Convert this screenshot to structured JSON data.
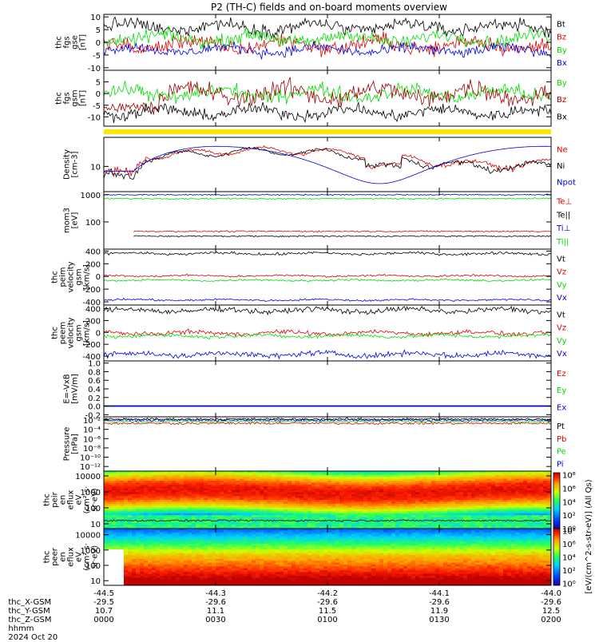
{
  "title": "P2 (TH-C) fields and on-board moments overview",
  "colors": {
    "black": "#000000",
    "red": "#e00000",
    "green": "#00dd00",
    "blue": "#0000e0",
    "dark_red": "#a00000",
    "yellow": "#ffe600"
  },
  "chart_data": [
    {
      "id": "fgs_gse",
      "type": "line",
      "ylabel": [
        "thc",
        "fgs",
        "gse",
        "[nT]"
      ],
      "yticks": [
        "10",
        "5",
        "0",
        "-5",
        "-10"
      ],
      "ytick_values": [
        10,
        5,
        0,
        -5,
        -10
      ],
      "ylim": [
        -11,
        11
      ],
      "series": [
        {
          "name": "Bt",
          "color": "#000000",
          "base": 6,
          "amp": 2.5
        },
        {
          "name": "Bz",
          "color": "#e00000",
          "base": -1,
          "amp": 3
        },
        {
          "name": "By",
          "color": "#00dd00",
          "base": 1.5,
          "amp": 2.5
        },
        {
          "name": "Bx",
          "color": "#0000e0",
          "base": -3,
          "amp": 2
        }
      ]
    },
    {
      "id": "fgs_gsm",
      "type": "line",
      "ylabel": [
        "thc",
        "fgs",
        "gsm",
        "[nT]"
      ],
      "yticks": [
        "5",
        "0",
        "-5",
        "-10"
      ],
      "ytick_values": [
        5,
        0,
        -5,
        -10
      ],
      "ylim": [
        -14,
        10
      ],
      "series": [
        {
          "name": "By",
          "color": "#00dd00",
          "base": 0,
          "amp": 3
        },
        {
          "name": "Bz",
          "color": "#a00000",
          "base": 0,
          "amp": 4
        },
        {
          "name": "Bx",
          "color": "#000000",
          "base": -8,
          "amp": 2.5
        }
      ]
    },
    {
      "id": "density",
      "type": "line",
      "scale": "log",
      "ylabel": [
        "Density",
        "[cm-3]"
      ],
      "yticks": [
        "10"
      ],
      "ytick_values": [
        10
      ],
      "ylim": [
        3,
        40
      ],
      "series": [
        {
          "name": "Ne",
          "color": "#e00000"
        },
        {
          "name": "Ni",
          "color": "#000000"
        },
        {
          "name": "Npot",
          "color": "#0000e0"
        }
      ]
    },
    {
      "id": "temperature",
      "type": "line",
      "scale": "log",
      "ylabel": [
        "mom3",
        "[eV]"
      ],
      "yticks": [
        "1000",
        "100"
      ],
      "ytick_values": [
        1000,
        100
      ],
      "ylim": [
        10,
        1300
      ],
      "series": [
        {
          "name": "Te⊥",
          "color": "#e00000",
          "level": 45
        },
        {
          "name": "Te||",
          "color": "#000000",
          "level": 30
        },
        {
          "name": "Ti⊥",
          "color": "#0000e0",
          "level": 1000
        },
        {
          "name": "Ti||",
          "color": "#00dd00",
          "level": 720
        }
      ]
    },
    {
      "id": "peim_velocity",
      "type": "line",
      "ylabel": [
        "thc",
        "peim",
        "velocity",
        "gsm",
        "[km/s]"
      ],
      "yticks": [
        "400",
        "200",
        "0",
        "-200",
        "-400"
      ],
      "ytick_values": [
        400,
        200,
        0,
        -200,
        -400
      ],
      "ylim": [
        -450,
        430
      ],
      "series": [
        {
          "name": "Vt",
          "color": "#000000",
          "base": 360,
          "amp": 20
        },
        {
          "name": "Vz",
          "color": "#e00000",
          "base": 10,
          "amp": 15
        },
        {
          "name": "Vy",
          "color": "#00dd00",
          "base": -60,
          "amp": 15
        },
        {
          "name": "Vx",
          "color": "#0000e0",
          "base": -370,
          "amp": 15
        }
      ]
    },
    {
      "id": "peem_velocity",
      "type": "line",
      "ylabel": [
        "thc",
        "peem",
        "velocity",
        "gsm",
        "[km/s]"
      ],
      "yticks": [
        "400",
        "200",
        "0",
        "-200",
        "-400"
      ],
      "ytick_values": [
        400,
        200,
        0,
        -200,
        -400
      ],
      "ylim": [
        -480,
        460
      ],
      "series": [
        {
          "name": "Vt",
          "color": "#000000",
          "base": 370,
          "amp": 45
        },
        {
          "name": "Vz",
          "color": "#e00000",
          "base": -10,
          "amp": 35
        },
        {
          "name": "Vy",
          "color": "#00dd00",
          "base": -60,
          "amp": 30
        },
        {
          "name": "Vx",
          "color": "#0000e0",
          "base": -370,
          "amp": 45
        }
      ]
    },
    {
      "id": "efield",
      "type": "line",
      "ylabel": [
        "E=-VxB",
        "[mV/m]"
      ],
      "yticks": [
        "1.0",
        "0.8",
        "0.6",
        "0.4",
        "0.2",
        "0.0",
        "-0.2"
      ],
      "ytick_values": [
        1.0,
        0.8,
        0.6,
        0.4,
        0.2,
        0.0,
        -0.2
      ],
      "ylim": [
        -0.25,
        1.05
      ],
      "series": [
        {
          "name": "Ez",
          "color": "#e00000",
          "base": 0,
          "amp": 0
        },
        {
          "name": "Ey",
          "color": "#00dd00",
          "base": 0,
          "amp": 0
        },
        {
          "name": "Ex",
          "color": "#0000e0",
          "base": 0,
          "amp": 0
        }
      ]
    },
    {
      "id": "pressure",
      "type": "line",
      "scale": "log",
      "ylabel": [
        "Pressure",
        "[nPa]"
      ],
      "yticks": [
        "10⁻²",
        "10⁻⁴",
        "10⁻⁶",
        "10⁻⁸",
        "10⁻¹⁰",
        "10⁻¹²"
      ],
      "ytick_values": [
        -2,
        -4,
        -6,
        -8,
        -10,
        -12
      ],
      "ylim": [
        -13,
        -1.3
      ],
      "series": [
        {
          "name": "Pt",
          "color": "#000000",
          "level": -1.8
        },
        {
          "name": "Pb",
          "color": "#e00000",
          "level": -2.7
        },
        {
          "name": "Pe",
          "color": "#00dd00",
          "level": -2.3
        },
        {
          "name": "Pi",
          "color": "#0000e0",
          "level": -2.0
        }
      ]
    },
    {
      "id": "peir_eflux",
      "type": "heatmap",
      "scale": "log",
      "ylabel": [
        "thc",
        "peir",
        "en",
        "eflux",
        "eV",
        "(cm²·s·",
        "sr·eV)"
      ],
      "yticks": [
        "10000",
        "1000",
        "100",
        "10"
      ],
      "ytick_values": [
        10000,
        1000,
        100,
        10
      ],
      "ylim": [
        5,
        20000
      ]
    },
    {
      "id": "peer_eflux",
      "type": "heatmap",
      "scale": "log",
      "ylabel": [
        "thc",
        "peer",
        "en",
        "eflux",
        "eV",
        "(cm²·s·",
        "sr·eV)"
      ],
      "yticks": [
        "10000",
        "1000",
        "100",
        "10"
      ],
      "ytick_values": [
        10000,
        1000,
        100,
        10
      ],
      "ylim": [
        5,
        25000
      ]
    }
  ],
  "colorbars": [
    {
      "ticks": [
        "10⁸",
        "10⁶",
        "10⁴",
        "10²",
        "10⁰"
      ],
      "tick_exp": [
        8,
        6,
        4,
        2,
        0
      ],
      "range": [
        0,
        8.3
      ]
    },
    {
      "ticks": [
        "10⁸",
        "10⁶",
        "10⁴",
        "10²",
        "10⁰"
      ],
      "tick_exp": [
        8,
        6,
        4,
        2,
        0
      ],
      "range": [
        -0.3,
        8.3
      ]
    }
  ],
  "colorbar_label": "[eV/(cm^2-s-str-eV)] (All Qs)",
  "xaxis": {
    "ticks": [
      0,
      30,
      60,
      90,
      120
    ],
    "rows": [
      {
        "label": "thc_X-GSM",
        "values": [
          "-44.5",
          "-44.3",
          "-44.2",
          "-44.1",
          "-44.0"
        ]
      },
      {
        "label": "thc_Y-GSM",
        "values": [
          "-29.5",
          "-29.6",
          "-29.6",
          "-29.6",
          "-29.6"
        ]
      },
      {
        "label": "thc_Z-GSM",
        "values": [
          "10.7",
          "11.1",
          "11.5",
          "11.9",
          "12.5"
        ]
      },
      {
        "label": "hhmm",
        "values": [
          "0000",
          "0030",
          "0100",
          "0130",
          "0200"
        ]
      }
    ],
    "date": "2024 Oct 20"
  }
}
